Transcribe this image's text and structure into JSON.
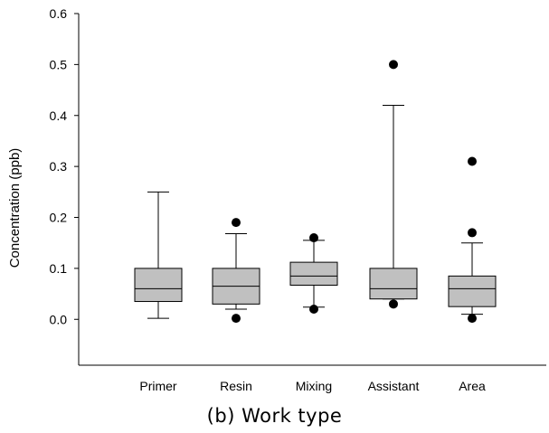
{
  "caption": "(b) Work type",
  "chart_data": {
    "type": "box",
    "title": "",
    "xlabel": "",
    "ylabel": "Concentration (ppb)",
    "ylim": [
      -0.09,
      0.6
    ],
    "yticks": [
      0.0,
      0.1,
      0.2,
      0.3,
      0.4,
      0.5,
      0.6
    ],
    "ytick_labels": [
      "0.0",
      "0.1",
      "0.2",
      "0.3",
      "0.4",
      "0.5",
      "0.6"
    ],
    "categories": [
      "Primer",
      "Resin",
      "Mixing",
      "Assistant",
      "Area"
    ],
    "boxes": [
      {
        "category": "Primer",
        "whisker_low": 0.002,
        "q1": 0.035,
        "median": 0.06,
        "q3": 0.1,
        "whisker_high": 0.25,
        "outliers": []
      },
      {
        "category": "Resin",
        "whisker_low": 0.02,
        "q1": 0.03,
        "median": 0.065,
        "q3": 0.1,
        "whisker_high": 0.168,
        "outliers": [
          0.002,
          0.19
        ]
      },
      {
        "category": "Mixing",
        "whisker_low": 0.024,
        "q1": 0.067,
        "median": 0.085,
        "q3": 0.112,
        "whisker_high": 0.155,
        "outliers": [
          0.02,
          0.16
        ]
      },
      {
        "category": "Assistant",
        "whisker_low": 0.04,
        "q1": 0.04,
        "median": 0.06,
        "q3": 0.1,
        "whisker_high": 0.42,
        "outliers": [
          0.03,
          0.5
        ]
      },
      {
        "category": "Area",
        "whisker_low": 0.01,
        "q1": 0.025,
        "median": 0.06,
        "q3": 0.085,
        "whisker_high": 0.15,
        "outliers": [
          0.002,
          0.17,
          0.31
        ]
      }
    ],
    "box_color": "#c0c0c0",
    "grid": false,
    "legend": "none"
  }
}
